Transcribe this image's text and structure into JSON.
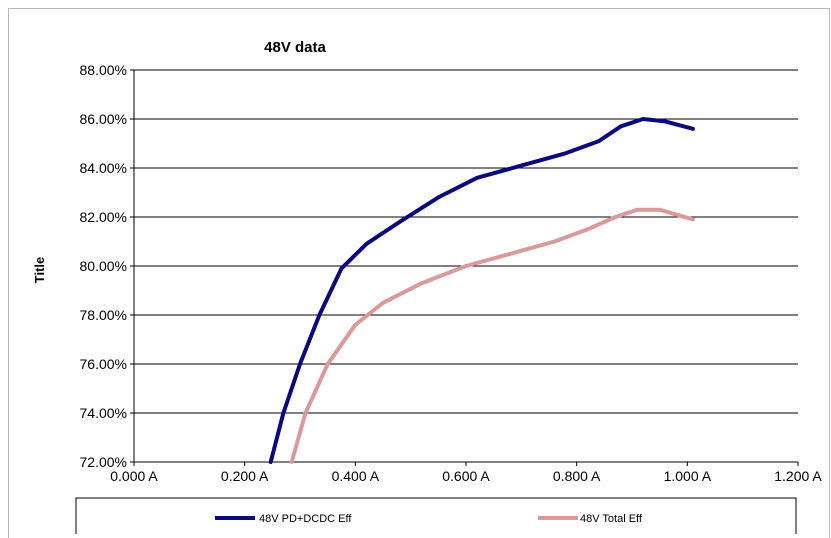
{
  "chart_data": {
    "type": "line",
    "title": "48V data",
    "xlabel": "",
    "ylabel": "Title",
    "xlim": [
      0.0,
      1.2
    ],
    "ylim": [
      72.0,
      88.0
    ],
    "x_ticks": [
      "0.000 A",
      "0.200 A",
      "0.400 A",
      "0.600 A",
      "0.800 A",
      "1.000 A",
      "1.200 A"
    ],
    "y_ticks": [
      "72.00%",
      "74.00%",
      "76.00%",
      "78.00%",
      "80.00%",
      "82.00%",
      "84.00%",
      "86.00%",
      "88.00%"
    ],
    "grid": "horizontal",
    "legend_position": "bottom",
    "series": [
      {
        "name": "48V PD+DCDC Eff",
        "color": "#0a0a7a",
        "points": [
          [
            0.247,
            72.0
          ],
          [
            0.27,
            74.0
          ],
          [
            0.3,
            76.0
          ],
          [
            0.335,
            78.0
          ],
          [
            0.375,
            79.9
          ],
          [
            0.42,
            80.9
          ],
          [
            0.48,
            81.8
          ],
          [
            0.55,
            82.8
          ],
          [
            0.62,
            83.6
          ],
          [
            0.7,
            84.1
          ],
          [
            0.78,
            84.6
          ],
          [
            0.84,
            85.1
          ],
          [
            0.88,
            85.7
          ],
          [
            0.92,
            86.0
          ],
          [
            0.96,
            85.9
          ],
          [
            1.01,
            85.6
          ]
        ]
      },
      {
        "name": "48V Total Eff",
        "color": "#d99a9a",
        "points": [
          [
            0.285,
            72.0
          ],
          [
            0.31,
            74.0
          ],
          [
            0.35,
            76.0
          ],
          [
            0.4,
            77.6
          ],
          [
            0.45,
            78.5
          ],
          [
            0.52,
            79.3
          ],
          [
            0.6,
            80.0
          ],
          [
            0.68,
            80.5
          ],
          [
            0.76,
            81.0
          ],
          [
            0.82,
            81.5
          ],
          [
            0.87,
            82.0
          ],
          [
            0.91,
            82.3
          ],
          [
            0.95,
            82.3
          ],
          [
            1.01,
            81.9
          ]
        ]
      }
    ]
  }
}
